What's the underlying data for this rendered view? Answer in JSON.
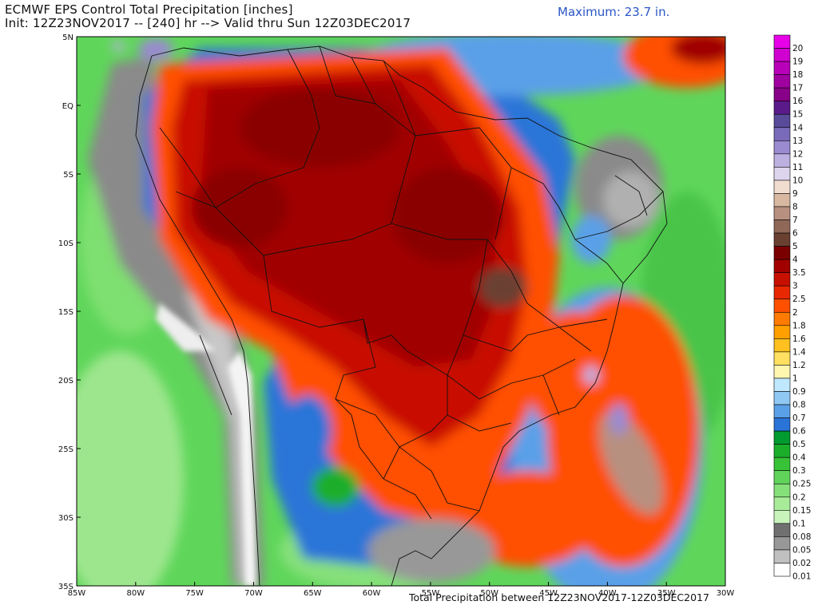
{
  "header": {
    "title_line1": "ECMWF EPS Control Total Precipitation [inches]",
    "title_line2": "Init: 12Z23NOV2017 -- [240] hr --> Valid thru Sun 12Z03DEC2017",
    "maximum": "Maximum: 23.7 in."
  },
  "footer": {
    "caption": "Total Precipitation between 12Z23NOV2017-12Z03DEC2017"
  },
  "map": {
    "lon_range": [
      -85,
      -30
    ],
    "lat_range": [
      -35,
      5
    ],
    "lon_ticks": [
      "85W",
      "80W",
      "75W",
      "70W",
      "65W",
      "60W",
      "55W",
      "50W",
      "45W",
      "40W",
      "35W",
      "30W"
    ],
    "lat_ticks": [
      "5N",
      "EQ",
      "5S",
      "10S",
      "15S",
      "20S",
      "25S",
      "30S",
      "35S"
    ]
  },
  "colorbar": {
    "levels": [
      {
        "label": "20",
        "color": "#e800e8"
      },
      {
        "label": "19",
        "color": "#d000d0"
      },
      {
        "label": "18",
        "color": "#b800b8"
      },
      {
        "label": "17",
        "color": "#a000a0"
      },
      {
        "label": "16",
        "color": "#880088"
      },
      {
        "label": "15",
        "color": "#5a1a8a"
      },
      {
        "label": "14",
        "color": "#5a4a9a"
      },
      {
        "label": "13",
        "color": "#7a6aba"
      },
      {
        "label": "12",
        "color": "#9a8ad0"
      },
      {
        "label": "11",
        "color": "#bcb0e0"
      },
      {
        "label": "10",
        "color": "#ddd4ee"
      },
      {
        "label": "9",
        "color": "#f0ddd0"
      },
      {
        "label": "8",
        "color": "#d8b8a0"
      },
      {
        "label": "7",
        "color": "#b89080"
      },
      {
        "label": "6",
        "color": "#906858"
      },
      {
        "label": "5",
        "color": "#6a4030"
      },
      {
        "label": "4",
        "color": "#7a0000"
      },
      {
        "label": "3.5",
        "color": "#a00000"
      },
      {
        "label": "3",
        "color": "#c81000"
      },
      {
        "label": "2.5",
        "color": "#e82800"
      },
      {
        "label": "2",
        "color": "#ff5000"
      },
      {
        "label": "1.8",
        "color": "#ff7a00"
      },
      {
        "label": "1.6",
        "color": "#ffa000"
      },
      {
        "label": "1.4",
        "color": "#ffc020"
      },
      {
        "label": "1.2",
        "color": "#ffe060"
      },
      {
        "label": "1",
        "color": "#fff6b0"
      },
      {
        "label": "0.9",
        "color": "#bfe8ff"
      },
      {
        "label": "0.8",
        "color": "#90c8f4"
      },
      {
        "label": "0.7",
        "color": "#5aa0e8"
      },
      {
        "label": "0.6",
        "color": "#2a74d8"
      },
      {
        "label": "0.5",
        "color": "#009a30"
      },
      {
        "label": "0.4",
        "color": "#1aae2a"
      },
      {
        "label": "0.3",
        "color": "#38c238"
      },
      {
        "label": "0.25",
        "color": "#60d45a"
      },
      {
        "label": "0.2",
        "color": "#86e07a"
      },
      {
        "label": "0.15",
        "color": "#a8ec9a"
      },
      {
        "label": "0.1",
        "color": "#c8f4bc"
      },
      {
        "label": "0.08",
        "color": "#707070"
      },
      {
        "label": "0.05",
        "color": "#989898"
      },
      {
        "label": "0.02",
        "color": "#c0c0c0"
      },
      {
        "label": "0.01",
        "color": "#ffffff"
      }
    ]
  }
}
